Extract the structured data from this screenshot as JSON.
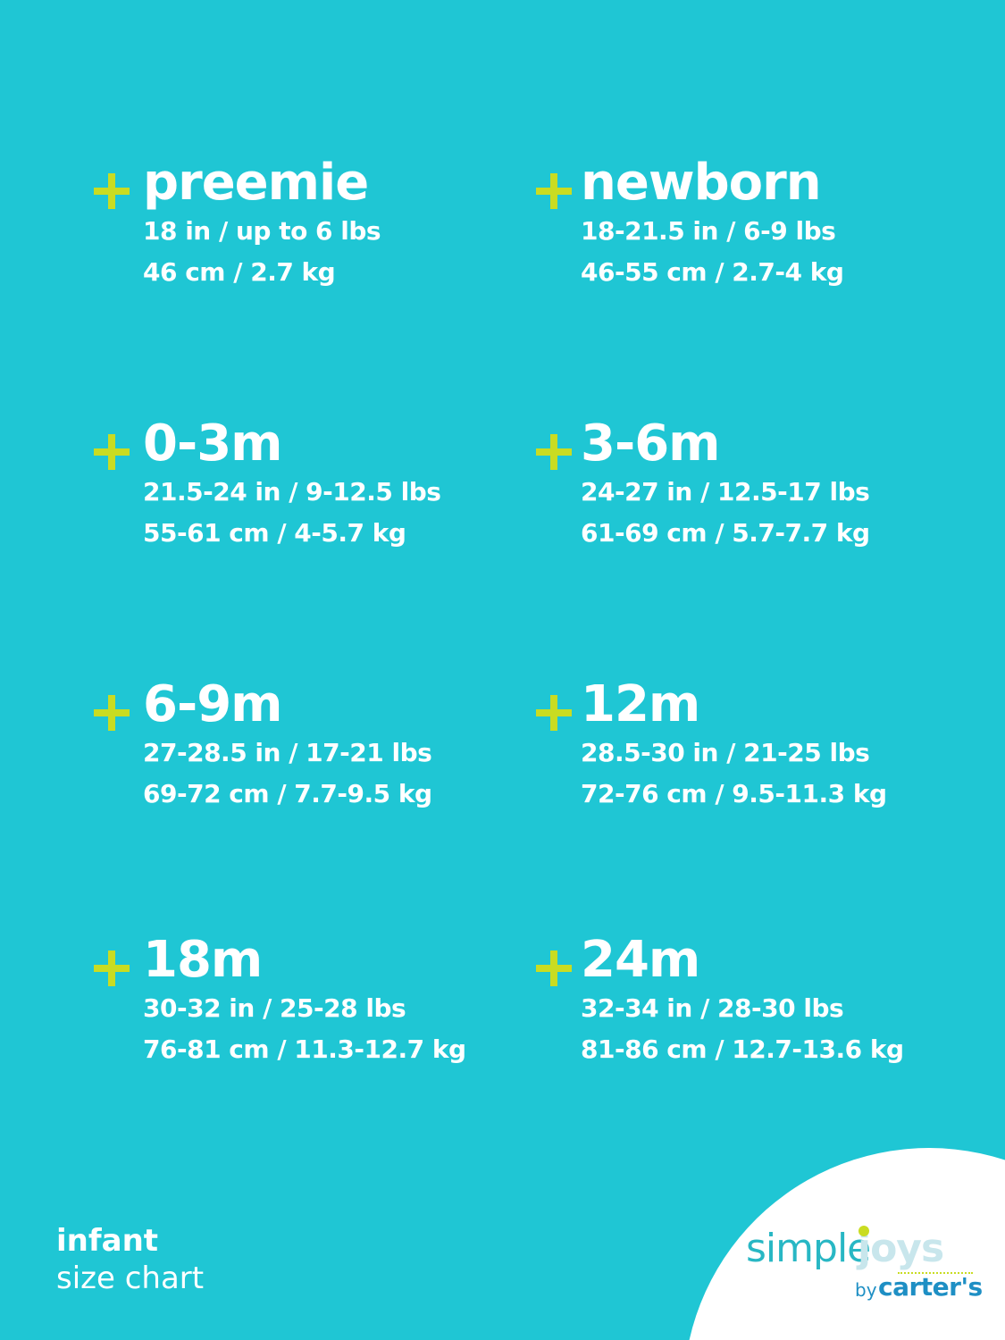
{
  "sizes": [
    {
      "name": "preemie",
      "imperial": "18 in / up to 6 lbs",
      "metric": "46 cm / 2.7 kg"
    },
    {
      "name": "newborn",
      "imperial": "18-21.5 in / 6-9 lbs",
      "metric": "46-55 cm / 2.7-4 kg"
    },
    {
      "name": "0-3m",
      "imperial": "21.5-24 in / 9-12.5 lbs",
      "metric": "55-61 cm / 4-5.7 kg"
    },
    {
      "name": "3-6m",
      "imperial": "24-27 in / 12.5-17 lbs",
      "metric": "61-69 cm / 5.7-7.7 kg"
    },
    {
      "name": "6-9m",
      "imperial": "27-28.5 in / 17-21 lbs",
      "metric": "69-72 cm / 7.7-9.5 kg"
    },
    {
      "name": "12m",
      "imperial": "28.5-30 in / 21-25 lbs",
      "metric": "72-76 cm / 9.5-11.3 kg"
    },
    {
      "name": "18m",
      "imperial": "30-32 in / 25-28 lbs",
      "metric": "76-81 cm / 11.3-12.7 kg"
    },
    {
      "name": "24m",
      "imperial": "32-34 in / 28-30 lbs",
      "metric": "81-86 cm / 12.7-13.6 kg"
    }
  ],
  "footer": {
    "line1": "infant",
    "line2": "size chart"
  },
  "logo": {
    "simple": "simple",
    "joys": "joys",
    "by": "by",
    "brand": "carter's"
  },
  "colors": {
    "background": "#1fc6d4",
    "accent": "#c9dc22",
    "brand_blue": "#1e8fc4"
  },
  "icons": {
    "bullet": "plus-icon"
  }
}
